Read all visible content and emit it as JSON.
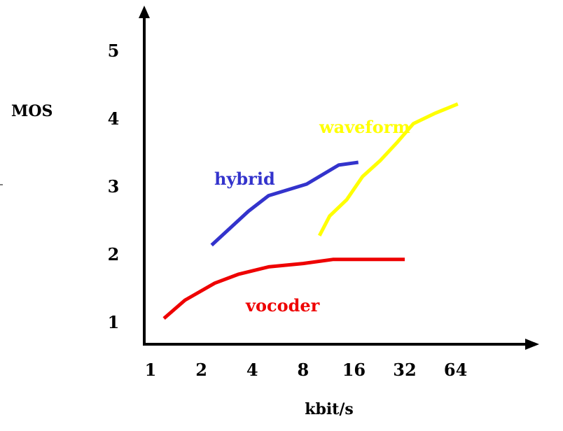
{
  "chart_data": {
    "type": "line",
    "xlabel": "kbit/s",
    "ylabel": "MOS",
    "x_scale": "log2",
    "x_ticks": [
      1,
      2,
      4,
      8,
      16,
      32,
      64
    ],
    "x_tick_labels": [
      "1",
      "2",
      "4",
      "8",
      "16",
      "32",
      "64"
    ],
    "y_ticks": [
      1,
      2,
      3,
      4,
      5
    ],
    "y_tick_labels": [
      "1",
      "2",
      "3",
      "4",
      "5"
    ],
    "grid": false,
    "legend": "inline labels",
    "series": [
      {
        "name": "vocoder",
        "color": "#ee0000",
        "points": [
          [
            1.2,
            1.05
          ],
          [
            1.6,
            1.32
          ],
          [
            2.4,
            1.57
          ],
          [
            3.3,
            1.7
          ],
          [
            5.0,
            1.81
          ],
          [
            8.0,
            1.86
          ],
          [
            12.0,
            1.92
          ],
          [
            32.0,
            1.92
          ]
        ]
      },
      {
        "name": "hybrid",
        "color": "#3333cc",
        "points": [
          [
            2.3,
            2.13
          ],
          [
            3.8,
            2.63
          ],
          [
            5.0,
            2.86
          ],
          [
            8.4,
            3.03
          ],
          [
            13.0,
            3.31
          ],
          [
            17.0,
            3.35
          ]
        ]
      },
      {
        "name": "waveform",
        "color": "#ffff00",
        "points": [
          [
            10.0,
            2.27
          ],
          [
            11.5,
            2.56
          ],
          [
            14.5,
            2.8
          ],
          [
            18.0,
            3.14
          ],
          [
            23.0,
            3.38
          ],
          [
            29.0,
            3.65
          ],
          [
            36.0,
            3.92
          ],
          [
            48.0,
            4.07
          ],
          [
            66.0,
            4.21
          ]
        ]
      }
    ]
  }
}
